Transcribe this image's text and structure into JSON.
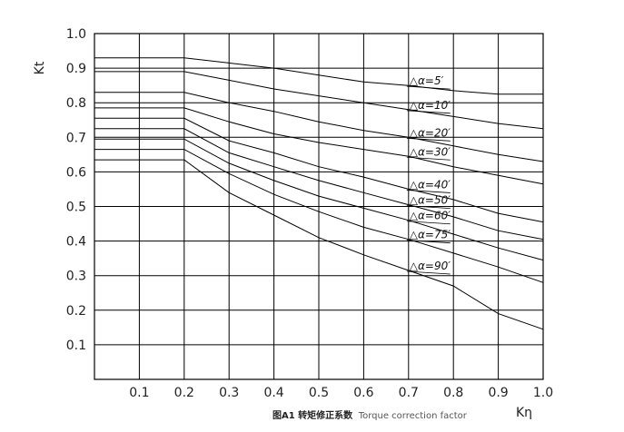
{
  "caption": {
    "cn": "图A1 转矩修正系数",
    "en": "Torque correction factor"
  },
  "chart_data": {
    "type": "line",
    "title": "",
    "xlabel": "Kη",
    "ylabel": "Kt",
    "xlim": [
      0.0,
      1.0
    ],
    "ylim": [
      0.0,
      1.0
    ],
    "grid": true,
    "x_ticks": [
      {
        "value": 0.1,
        "label": "0.1"
      },
      {
        "value": 0.2,
        "label": "0.2"
      },
      {
        "value": 0.3,
        "label": "0.3"
      },
      {
        "value": 0.4,
        "label": "0.4"
      },
      {
        "value": 0.5,
        "label": "0.5"
      },
      {
        "value": 0.6,
        "label": "0.6"
      },
      {
        "value": 0.7,
        "label": "0.7"
      },
      {
        "value": 0.8,
        "label": "0.8"
      },
      {
        "value": 0.9,
        "label": "0.9"
      },
      {
        "value": 1.0,
        "label": "1.0"
      }
    ],
    "y_ticks": [
      {
        "value": 0.1,
        "label": "0.1"
      },
      {
        "value": 0.2,
        "label": "0.2"
      },
      {
        "value": 0.3,
        "label": "0.3"
      },
      {
        "value": 0.4,
        "label": "0.4"
      },
      {
        "value": 0.5,
        "label": "0.5"
      },
      {
        "value": 0.6,
        "label": "0.6"
      },
      {
        "value": 0.7,
        "label": "0.7"
      },
      {
        "value": 0.8,
        "label": "0.8"
      },
      {
        "value": 0.9,
        "label": "0.9"
      },
      {
        "value": 1.0,
        "label": "1.0"
      }
    ],
    "x": [
      0.0,
      0.2,
      0.3,
      0.4,
      0.5,
      0.6,
      0.7,
      0.8,
      0.9,
      1.0
    ],
    "series": [
      {
        "name": "△α=5′",
        "values": [
          0.93,
          0.93,
          0.915,
          0.9,
          0.88,
          0.86,
          0.85,
          0.835,
          0.825,
          0.825
        ]
      },
      {
        "name": "△α=10′",
        "values": [
          0.89,
          0.89,
          0.865,
          0.84,
          0.82,
          0.8,
          0.78,
          0.76,
          0.74,
          0.725
        ]
      },
      {
        "name": "△α=20′",
        "values": [
          0.83,
          0.83,
          0.8,
          0.775,
          0.745,
          0.72,
          0.7,
          0.675,
          0.65,
          0.63
        ]
      },
      {
        "name": "△α=30′",
        "values": [
          0.785,
          0.785,
          0.745,
          0.71,
          0.685,
          0.665,
          0.645,
          0.615,
          0.59,
          0.565
        ]
      },
      {
        "name": "△α=40′",
        "values": [
          0.755,
          0.755,
          0.69,
          0.655,
          0.615,
          0.585,
          0.55,
          0.52,
          0.48,
          0.455
        ]
      },
      {
        "name": "△α=50′",
        "values": [
          0.725,
          0.725,
          0.655,
          0.615,
          0.575,
          0.54,
          0.505,
          0.47,
          0.43,
          0.405
        ]
      },
      {
        "name": "△α=60′",
        "values": [
          0.695,
          0.695,
          0.625,
          0.575,
          0.53,
          0.495,
          0.46,
          0.42,
          0.38,
          0.345
        ]
      },
      {
        "name": "△α=75′",
        "values": [
          0.665,
          0.665,
          0.595,
          0.535,
          0.485,
          0.44,
          0.405,
          0.365,
          0.325,
          0.28
        ]
      },
      {
        "name": "△α=90′",
        "values": [
          0.635,
          0.635,
          0.54,
          0.475,
          0.41,
          0.36,
          0.315,
          0.27,
          0.19,
          0.145
        ]
      }
    ]
  }
}
